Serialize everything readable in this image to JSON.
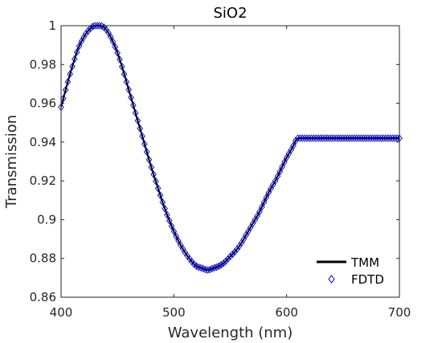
{
  "chart_data": {
    "type": "line",
    "title": "SiO2",
    "xlabel": "Wavelength (nm)",
    "ylabel": "Transmission",
    "xlim": [
      400,
      700
    ],
    "ylim": [
      0.86,
      1.0
    ],
    "x_ticks": [
      400,
      500,
      600,
      700
    ],
    "x_tick_labels": [
      "400",
      "500",
      "600",
      "700"
    ],
    "y_ticks": [
      0.86,
      0.88,
      0.9,
      0.92,
      0.94,
      0.96,
      0.98,
      1.0
    ],
    "y_tick_labels": [
      "0.86",
      "0.88",
      "0.9",
      "0.92",
      "0.94",
      "0.96",
      "0.98",
      "1"
    ],
    "grid": false,
    "legend_position": "bottom-right",
    "series": [
      {
        "name": "TMM",
        "style": "line",
        "color": "#000000",
        "x": [
          400,
          405,
          410,
          415,
          420,
          425,
          430,
          435,
          440,
          445,
          450,
          455,
          460,
          465,
          470,
          475,
          480,
          485,
          490,
          495,
          500,
          505,
          510,
          515,
          520,
          525,
          530,
          535,
          540,
          545,
          550,
          555,
          560,
          565,
          570,
          575,
          580,
          585,
          590,
          595,
          600,
          605,
          610,
          615,
          620,
          625,
          630,
          635,
          640,
          645,
          650,
          655,
          660,
          665,
          670,
          675,
          680,
          685,
          690,
          695,
          700
        ],
        "y": [
          0.958,
          0.969,
          0.979,
          0.988,
          0.994,
          0.998,
          1.0,
          1.0,
          0.998,
          0.993,
          0.986,
          0.977,
          0.967,
          0.957,
          0.947,
          0.937,
          0.927,
          0.918,
          0.909,
          0.901,
          0.894,
          0.888,
          0.883,
          0.879,
          0.876,
          0.875,
          0.874,
          0.875,
          0.876,
          0.878,
          0.881,
          0.884,
          0.888,
          0.893,
          0.898,
          0.903,
          0.909,
          0.915,
          0.92,
          0.926,
          0.932,
          0.937,
          0.942,
          0.942,
          0.942,
          0.942,
          0.942,
          0.942,
          0.942,
          0.942,
          0.942,
          0.942,
          0.942,
          0.942,
          0.942,
          0.942,
          0.942,
          0.942,
          0.942,
          0.942,
          0.942
        ]
      },
      {
        "name": "FDTD",
        "style": "marker-diamond",
        "color": "#0000cc"
      }
    ]
  }
}
